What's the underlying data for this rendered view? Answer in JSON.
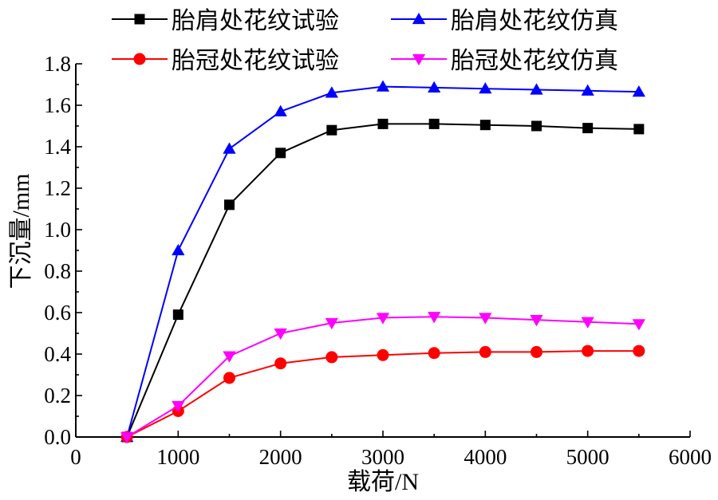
{
  "chart_data": {
    "type": "line",
    "xlabel": "载荷/N",
    "ylabel": "下沉量/mm",
    "xlim": [
      0,
      6000
    ],
    "ylim": [
      0.0,
      1.8
    ],
    "xticks": [
      0,
      1000,
      2000,
      3000,
      4000,
      5000,
      6000
    ],
    "xtick_labels": [
      "0",
      "1000",
      "2000",
      "3000",
      "4000",
      "5000",
      "6000"
    ],
    "yticks": [
      0.0,
      0.2,
      0.4,
      0.6,
      0.8,
      1.0,
      1.2,
      1.4,
      1.6,
      1.8
    ],
    "ytick_labels": [
      "0.0",
      "0.2",
      "0.4",
      "0.6",
      "0.8",
      "1.0",
      "1.2",
      "1.4",
      "1.6",
      "1.8"
    ],
    "legend_position": "top",
    "grid": false,
    "x": [
      500,
      1000,
      1500,
      2000,
      2500,
      3000,
      3500,
      4000,
      4500,
      5000,
      5500
    ],
    "series": [
      {
        "name": "胎肩处花纹试验",
        "color": "#000000",
        "marker": "square",
        "values": [
          0.0,
          0.59,
          1.12,
          1.37,
          1.48,
          1.51,
          1.51,
          1.505,
          1.5,
          1.49,
          1.485
        ]
      },
      {
        "name": "胎肩处花纹仿真",
        "color": "#0000ff",
        "marker": "triangle-up",
        "values": [
          0.0,
          0.9,
          1.39,
          1.57,
          1.66,
          1.69,
          1.685,
          1.68,
          1.675,
          1.67,
          1.665
        ]
      },
      {
        "name": "胎冠处花纹试验",
        "color": "#ff0000",
        "marker": "circle",
        "values": [
          0.0,
          0.125,
          0.285,
          0.355,
          0.385,
          0.395,
          0.405,
          0.41,
          0.41,
          0.415,
          0.415
        ]
      },
      {
        "name": "胎冠处花纹仿真",
        "color": "#ff00ff",
        "marker": "triangle-down",
        "values": [
          0.0,
          0.15,
          0.39,
          0.5,
          0.55,
          0.575,
          0.58,
          0.575,
          0.565,
          0.555,
          0.545
        ]
      }
    ]
  }
}
